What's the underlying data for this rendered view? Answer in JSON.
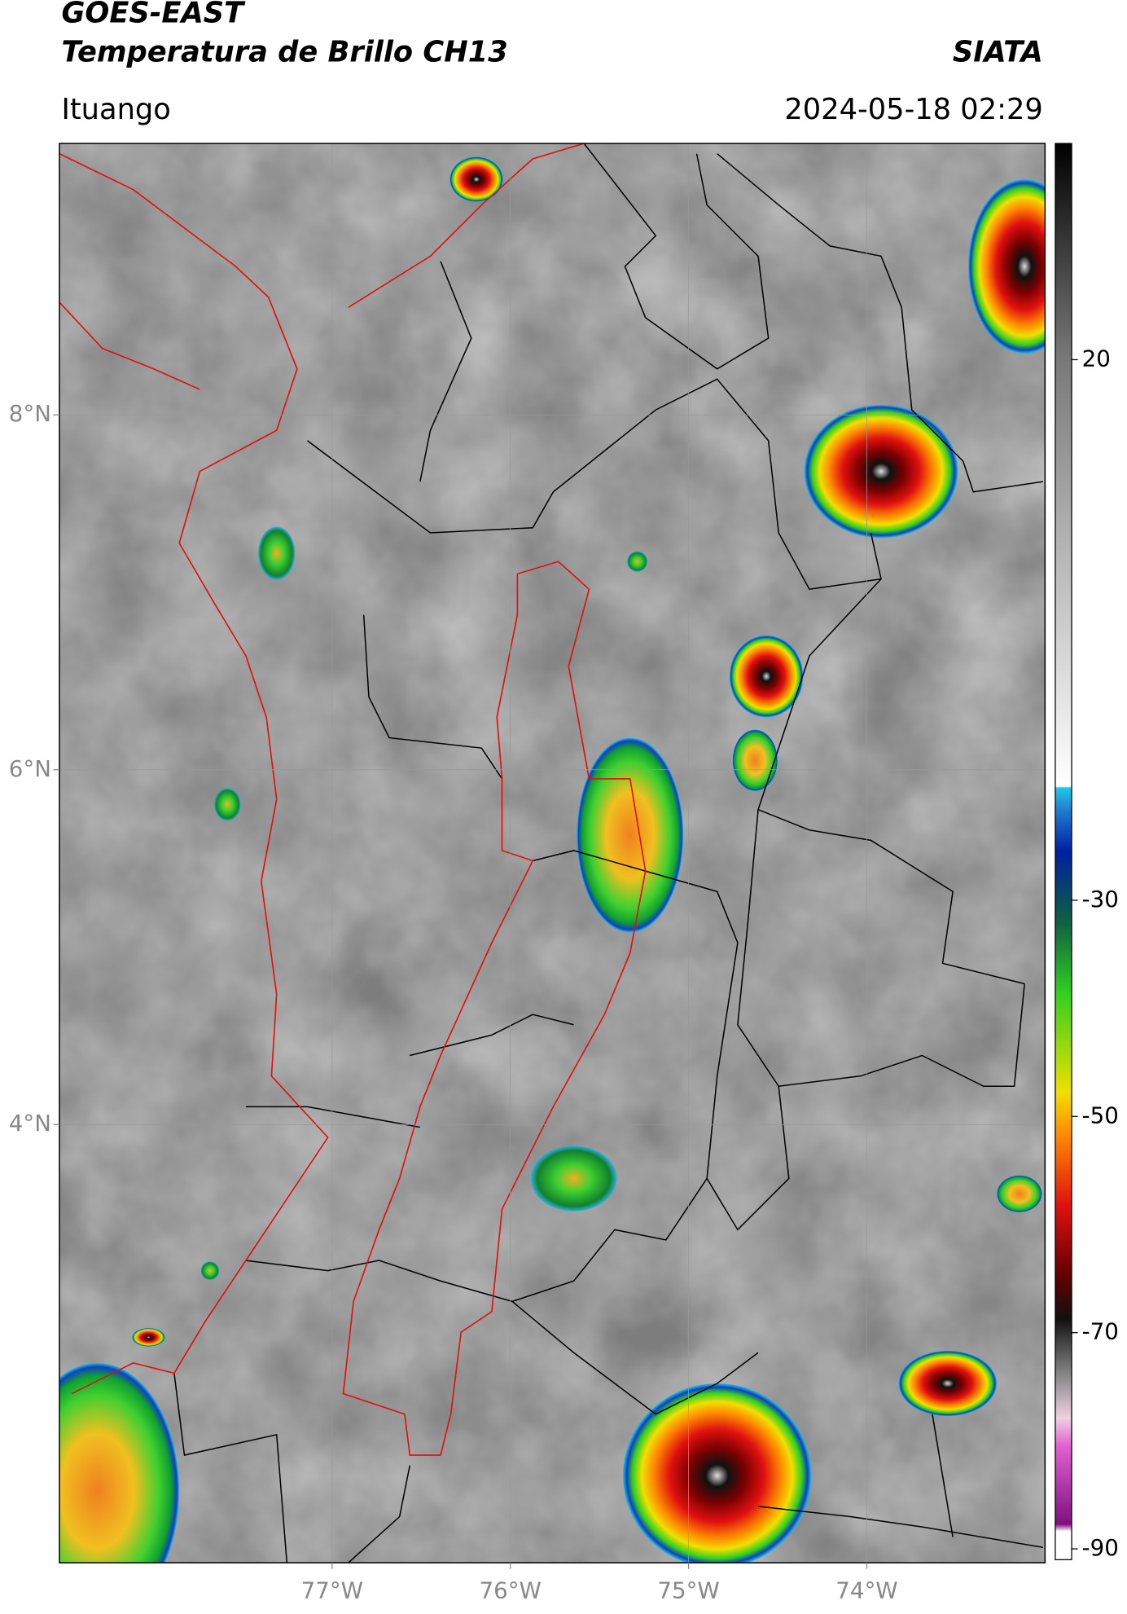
{
  "header": {
    "title": "GOES-EAST",
    "subtitle": "Temperatura de Brillo CH13",
    "source": "SIATA",
    "location": "Ituango",
    "datetime": "2024-05-18 02:29"
  },
  "map": {
    "xlim": [
      -78.53,
      -73.0
    ],
    "ylim": [
      1.53,
      9.53
    ],
    "xticks": [
      {
        "value": -77,
        "label": "77°W"
      },
      {
        "value": -76,
        "label": "76°W"
      },
      {
        "value": -75,
        "label": "75°W"
      },
      {
        "value": -74,
        "label": "74°W"
      }
    ],
    "yticks": [
      {
        "value": 8,
        "label": "8°N"
      },
      {
        "value": 6,
        "label": "6°N"
      },
      {
        "value": 4,
        "label": "4°N"
      }
    ],
    "grid": true
  },
  "colorbar": {
    "clim": [
      -91,
      40
    ],
    "ticks": [
      20,
      -30,
      -50,
      -70,
      -90
    ]
  }
}
